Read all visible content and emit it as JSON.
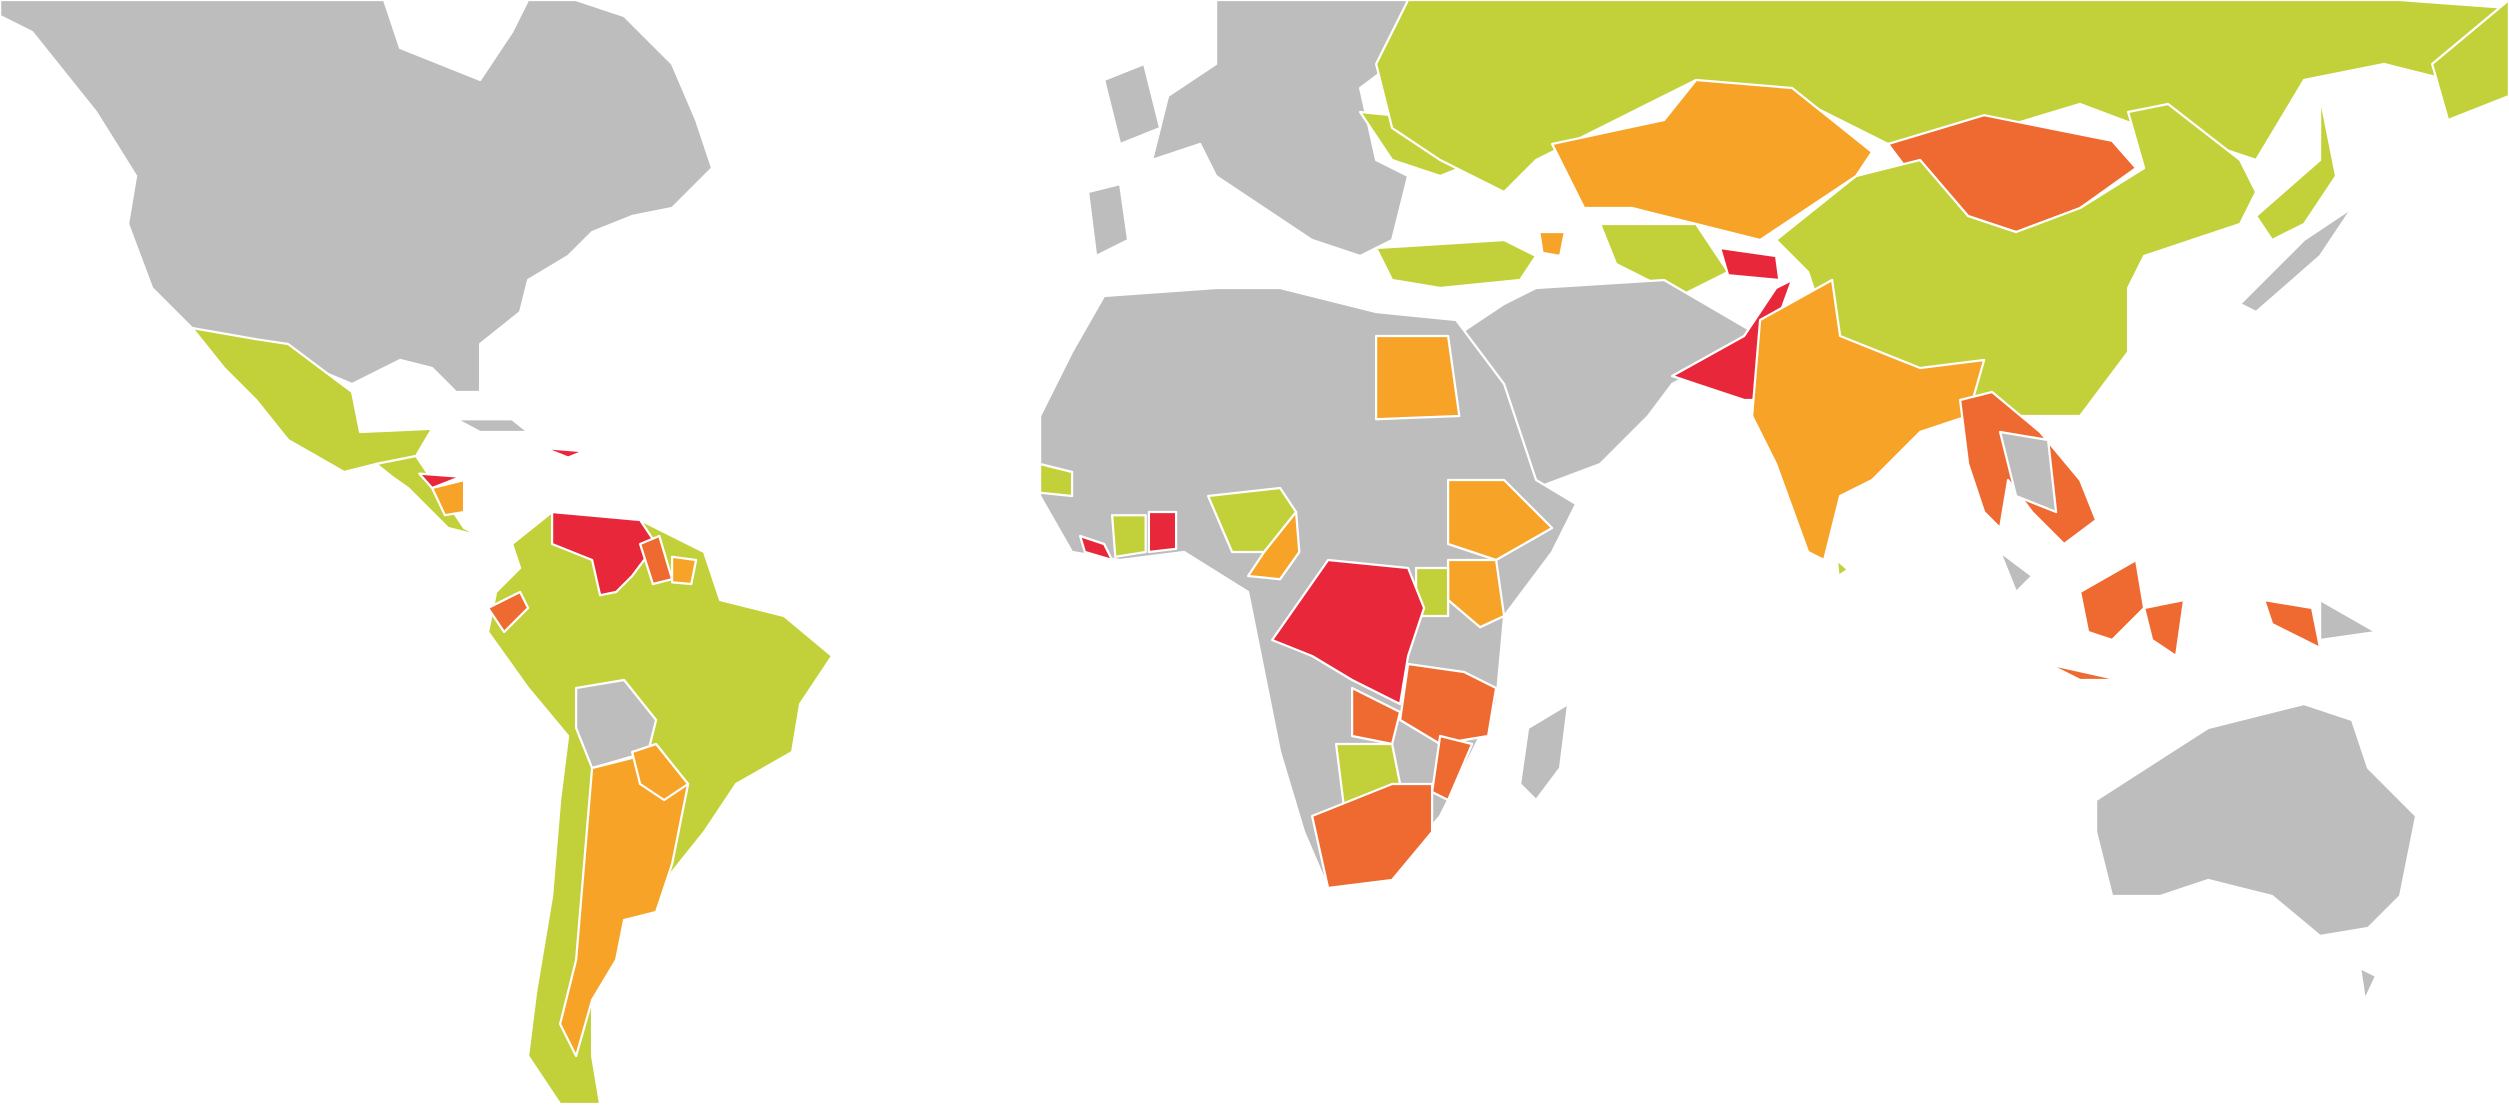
{
  "palette": [
    "#c2d13a",
    "#f6a327",
    "#ef6a30",
    "#e8283a",
    "#bdbdbd"
  ]
}
